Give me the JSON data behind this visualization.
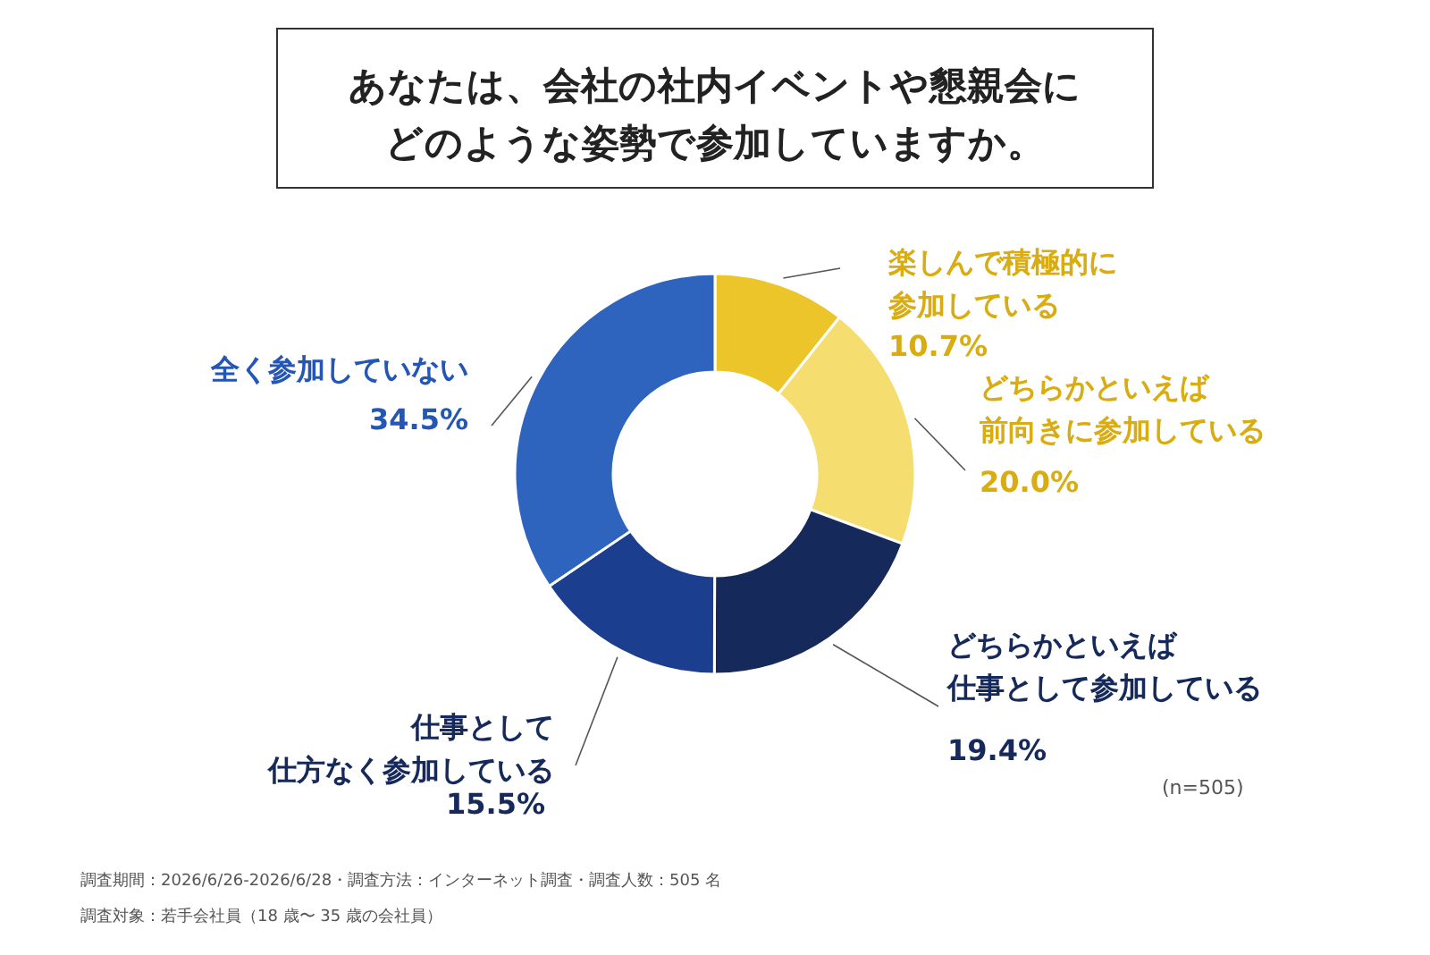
{
  "chart_data": {
    "type": "donut",
    "title": "あなたは、会社の社内イベントや懇親会にどのような姿勢で参加していますか。",
    "categories": [
      "楽しんで積極的に参加している",
      "どちらかといえば前向きに参加している",
      "どちらかといえば仕事として参加している",
      "仕事として仕方なく参加している",
      "全く参加していない"
    ],
    "values": [
      10.7,
      20.0,
      19.4,
      15.5,
      34.5
    ],
    "value_labels": [
      "10.7%",
      "20.0%",
      "19.4%",
      "15.5%",
      "34.5%"
    ],
    "colors": [
      "#ecc52b",
      "#f6dd6f",
      "#15295a",
      "#1c3e8e",
      "#2f64be"
    ],
    "annotations": [
      "(n=505)",
      "調査期間：2026/6/26-2026/6/28・調査方法：インターネット調査・調査人数：505 名",
      "調査対象：若手会社員（18 歳〜 35 歳の会社員）"
    ]
  }
}
